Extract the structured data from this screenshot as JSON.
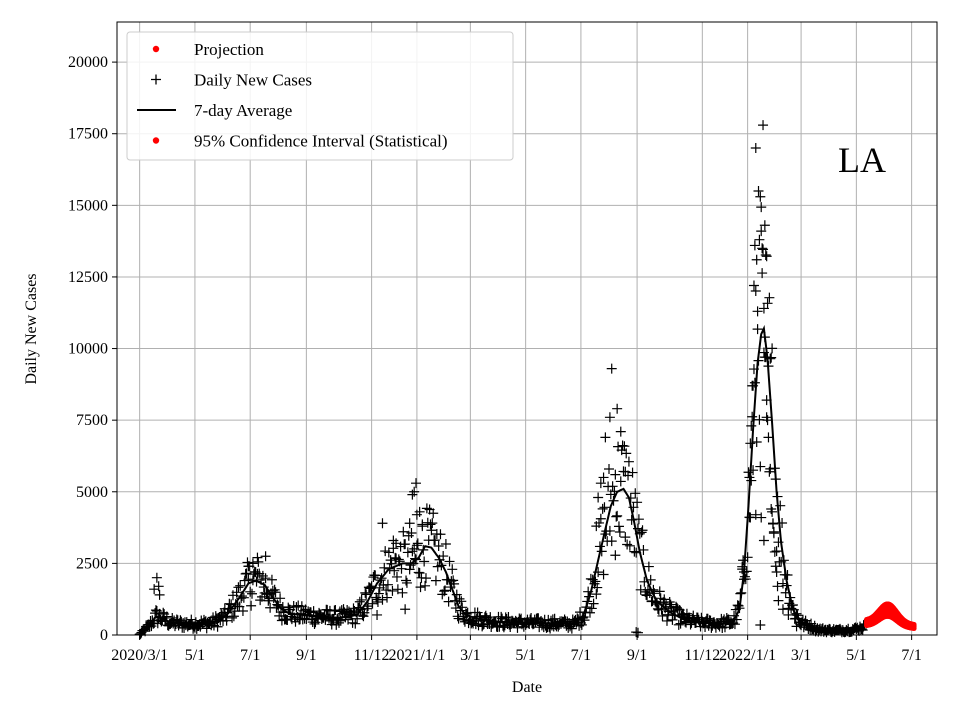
{
  "chart_data": {
    "type": "line",
    "title": "",
    "annotation": "LA",
    "xlabel": "Date",
    "ylabel": "Daily New Cases",
    "ylim": [
      0,
      21400
    ],
    "xlim": [
      -25,
      880
    ],
    "grid": true,
    "x_unit": "days since 2020-03-01",
    "legend_position": "top-left",
    "colors": {
      "black": "#000000",
      "red": "#ff0000",
      "grid": "#b0b0b0"
    },
    "x_ticks": [
      {
        "day": 0,
        "label": "2020/3/1"
      },
      {
        "day": 61,
        "label": "5/1"
      },
      {
        "day": 122,
        "label": "7/1"
      },
      {
        "day": 184,
        "label": "9/1"
      },
      {
        "day": 256,
        "label": "11/12"
      },
      {
        "day": 306,
        "label": "2021/1/1"
      },
      {
        "day": 365,
        "label": "3/1"
      },
      {
        "day": 426,
        "label": "5/1"
      },
      {
        "day": 487,
        "label": "7/1"
      },
      {
        "day": 549,
        "label": "9/1"
      },
      {
        "day": 621,
        "label": "11/12"
      },
      {
        "day": 671,
        "label": "2022/1/1"
      },
      {
        "day": 730,
        "label": "3/1"
      },
      {
        "day": 791,
        "label": "5/1"
      },
      {
        "day": 852,
        "label": "7/1"
      }
    ],
    "y_ticks": [
      {
        "value": 0,
        "label": "0"
      },
      {
        "value": 2500,
        "label": "2500"
      },
      {
        "value": 5000,
        "label": "5000"
      },
      {
        "value": 7500,
        "label": "7500"
      },
      {
        "value": 10000,
        "label": "10000"
      },
      {
        "value": 12500,
        "label": "12500"
      },
      {
        "value": 15000,
        "label": "15000"
      },
      {
        "value": 17500,
        "label": "17500"
      },
      {
        "value": 20000,
        "label": "20000"
      }
    ],
    "legend": [
      {
        "label": "Projection",
        "marker": "dot",
        "color": "#ff0000"
      },
      {
        "label": "Daily New Cases",
        "marker": "plus",
        "color": "#000000"
      },
      {
        "label": "7-day Average",
        "marker": "line",
        "color": "#000000"
      },
      {
        "label": "95% Confidence Interval (Statistical)",
        "marker": "dot",
        "color": "#ff0000"
      }
    ],
    "avg_keypoints": [
      [
        0,
        20
      ],
      [
        10,
        300
      ],
      [
        18,
        650
      ],
      [
        25,
        580
      ],
      [
        35,
        420
      ],
      [
        50,
        380
      ],
      [
        65,
        390
      ],
      [
        80,
        420
      ],
      [
        95,
        650
      ],
      [
        110,
        1300
      ],
      [
        120,
        1800
      ],
      [
        128,
        1900
      ],
      [
        138,
        1750
      ],
      [
        145,
        1400
      ],
      [
        155,
        950
      ],
      [
        165,
        750
      ],
      [
        180,
        700
      ],
      [
        200,
        650
      ],
      [
        220,
        600
      ],
      [
        240,
        700
      ],
      [
        252,
        1200
      ],
      [
        262,
        1800
      ],
      [
        275,
        2300
      ],
      [
        290,
        2500
      ],
      [
        300,
        2500
      ],
      [
        308,
        2700
      ],
      [
        315,
        3100
      ],
      [
        322,
        3050
      ],
      [
        330,
        2700
      ],
      [
        338,
        2200
      ],
      [
        345,
        1600
      ],
      [
        352,
        1000
      ],
      [
        360,
        700
      ],
      [
        375,
        550
      ],
      [
        400,
        450
      ],
      [
        430,
        420
      ],
      [
        460,
        400
      ],
      [
        480,
        380
      ],
      [
        490,
        700
      ],
      [
        498,
        1500
      ],
      [
        506,
        2600
      ],
      [
        514,
        3700
      ],
      [
        520,
        4500
      ],
      [
        527,
        5000
      ],
      [
        534,
        5100
      ],
      [
        540,
        4800
      ],
      [
        546,
        3900
      ],
      [
        552,
        2900
      ],
      [
        560,
        1900
      ],
      [
        570,
        1200
      ],
      [
        585,
        800
      ],
      [
        600,
        550
      ],
      [
        620,
        420
      ],
      [
        640,
        400
      ],
      [
        655,
        450
      ],
      [
        662,
        900
      ],
      [
        667,
        2200
      ],
      [
        672,
        4500
      ],
      [
        677,
        7200
      ],
      [
        682,
        9500
      ],
      [
        686,
        10500
      ],
      [
        689,
        10700
      ],
      [
        693,
        9600
      ],
      [
        698,
        7400
      ],
      [
        703,
        5000
      ],
      [
        708,
        3200
      ],
      [
        714,
        1900
      ],
      [
        721,
        900
      ],
      [
        730,
        420
      ],
      [
        750,
        180
      ],
      [
        770,
        150
      ],
      [
        790,
        200
      ],
      [
        800,
        280
      ]
    ],
    "cases_scatter_extra": [
      [
        19,
        2000
      ],
      [
        21,
        1700
      ],
      [
        16,
        1600
      ],
      [
        22,
        1400
      ],
      [
        125,
        2500
      ],
      [
        130,
        2700
      ],
      [
        139,
        2750
      ],
      [
        120,
        2400
      ],
      [
        268,
        3900
      ],
      [
        280,
        3300
      ],
      [
        283,
        3200
      ],
      [
        298,
        3900
      ],
      [
        301,
        4900
      ],
      [
        303,
        5000
      ],
      [
        305,
        5300
      ],
      [
        306,
        4200
      ],
      [
        309,
        4300
      ],
      [
        312,
        3800
      ],
      [
        293,
        900
      ],
      [
        262,
        700
      ],
      [
        519,
        7600
      ],
      [
        521,
        9300
      ],
      [
        527,
        7900
      ],
      [
        531,
        7100
      ],
      [
        536,
        5700
      ],
      [
        514,
        6900
      ],
      [
        509,
        5300
      ],
      [
        506,
        4800
      ],
      [
        504,
        3800
      ],
      [
        512,
        5500
      ],
      [
        525,
        5600
      ],
      [
        548,
        100
      ],
      [
        550,
        80
      ],
      [
        676,
        8700
      ],
      [
        677,
        8700
      ],
      [
        678,
        12200
      ],
      [
        679,
        13600
      ],
      [
        680,
        17000
      ],
      [
        681,
        13100
      ],
      [
        682,
        11300
      ],
      [
        683,
        15500
      ],
      [
        684,
        13800
      ],
      [
        685,
        15300
      ],
      [
        686,
        14100
      ],
      [
        687,
        13500
      ],
      [
        688,
        17800
      ],
      [
        689,
        11400
      ],
      [
        690,
        10400
      ],
      [
        690,
        9700
      ],
      [
        691,
        9700
      ],
      [
        692,
        7600
      ],
      [
        692,
        8200
      ],
      [
        693,
        7500
      ],
      [
        694,
        6900
      ],
      [
        695,
        5700
      ],
      [
        696,
        5800
      ],
      [
        697,
        4400
      ],
      [
        698,
        4300
      ],
      [
        699,
        3900
      ],
      [
        700,
        3600
      ],
      [
        701,
        2900
      ],
      [
        702,
        2400
      ],
      [
        703,
        2200
      ],
      [
        704,
        1700
      ],
      [
        675,
        7300
      ],
      [
        673,
        5500
      ],
      [
        674,
        4100
      ],
      [
        680,
        4200
      ],
      [
        686,
        4100
      ],
      [
        689,
        3300
      ],
      [
        685,
        350
      ],
      [
        665,
        2300
      ],
      [
        667,
        2200
      ],
      [
        705,
        1200
      ],
      [
        710,
        900
      ],
      [
        716,
        700
      ],
      [
        725,
        300
      ]
    ],
    "projection_window": [
      802,
      855
    ],
    "projection_mean_peak": 950,
    "projection_start_value": 420,
    "projection_end_value": 300
  }
}
